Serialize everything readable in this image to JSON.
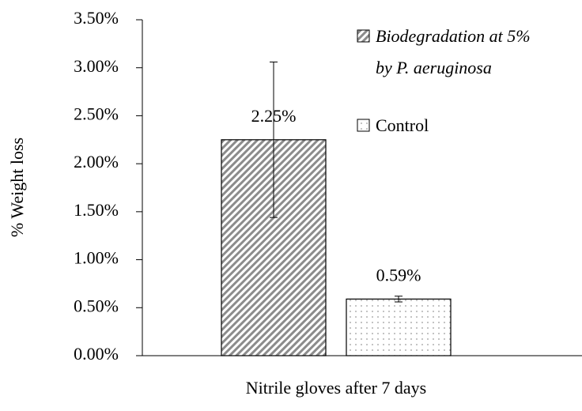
{
  "chart_data": {
    "type": "bar",
    "xlabel": "Nitrile gloves after 7 days",
    "ylabel": "% Weight loss",
    "categories": [
      "Nitrile gloves after 7 days"
    ],
    "series": [
      {
        "name": "Biodegradation at 5% by P. aeruginosa",
        "color": "#8c8c8c",
        "pattern": "hatch",
        "italic": true,
        "values": [
          2.25
        ],
        "errors": [
          0.81
        ],
        "value_labels": [
          "2.25%"
        ]
      },
      {
        "name": "Control",
        "color": "#9a9a9a",
        "pattern": "dots",
        "italic": false,
        "values": [
          0.59
        ],
        "errors": [
          0.03
        ],
        "value_labels": [
          "0.59%"
        ]
      }
    ],
    "ylim": [
      0,
      3.5
    ],
    "yticks": [
      {
        "value": 0,
        "label": "0.00%"
      },
      {
        "value": 0.5,
        "label": "0.50%"
      },
      {
        "value": 1,
        "label": "1.00%"
      },
      {
        "value": 1.5,
        "label": "1.50%"
      },
      {
        "value": 2,
        "label": "2.00%"
      },
      {
        "value": 2.5,
        "label": "2.50%"
      },
      {
        "value": 3,
        "label": "3.00%"
      },
      {
        "value": 3.5,
        "label": "3.50%"
      }
    ],
    "grid": false,
    "legend": "top-right"
  }
}
